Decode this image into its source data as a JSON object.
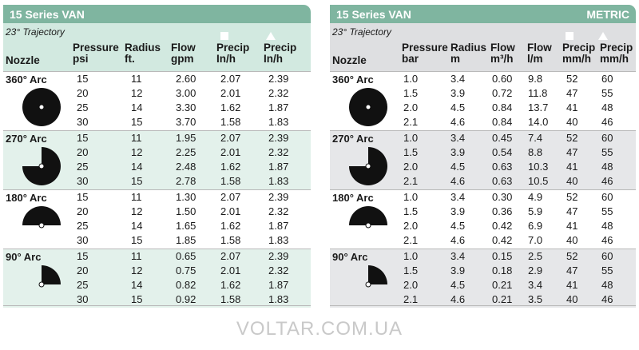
{
  "left": {
    "title": "15 Series VAN",
    "trajectory": "23° Trajectory",
    "headers": {
      "nozzle": "Nozzle",
      "pressure": [
        "Pressure",
        "psi"
      ],
      "radius": [
        "Radius",
        "ft."
      ],
      "flow": [
        "Flow",
        "gpm"
      ],
      "precip_sq": [
        "Precip",
        "In/h"
      ],
      "precip_tri": [
        "Precip",
        "In/h"
      ]
    },
    "groups": [
      {
        "label": "360° Arc",
        "arc": 360,
        "rows": [
          [
            "15",
            "11",
            "2.60",
            "2.07",
            "2.39"
          ],
          [
            "20",
            "12",
            "3.00",
            "2.01",
            "2.32"
          ],
          [
            "25",
            "14",
            "3.30",
            "1.62",
            "1.87"
          ],
          [
            "30",
            "15",
            "3.70",
            "1.58",
            "1.83"
          ]
        ]
      },
      {
        "label": "270° Arc",
        "arc": 270,
        "rows": [
          [
            "15",
            "11",
            "1.95",
            "2.07",
            "2.39"
          ],
          [
            "20",
            "12",
            "2.25",
            "2.01",
            "2.32"
          ],
          [
            "25",
            "14",
            "2.48",
            "1.62",
            "1.87"
          ],
          [
            "30",
            "15",
            "2.78",
            "1.58",
            "1.83"
          ]
        ]
      },
      {
        "label": "180° Arc",
        "arc": 180,
        "rows": [
          [
            "15",
            "11",
            "1.30",
            "2.07",
            "2.39"
          ],
          [
            "20",
            "12",
            "1.50",
            "2.01",
            "2.32"
          ],
          [
            "25",
            "14",
            "1.65",
            "1.62",
            "1.87"
          ],
          [
            "30",
            "15",
            "1.85",
            "1.58",
            "1.83"
          ]
        ]
      },
      {
        "label": "90° Arc",
        "arc": 90,
        "rows": [
          [
            "15",
            "11",
            "0.65",
            "2.07",
            "2.39"
          ],
          [
            "20",
            "12",
            "0.75",
            "2.01",
            "2.32"
          ],
          [
            "25",
            "14",
            "0.82",
            "1.62",
            "1.87"
          ],
          [
            "30",
            "15",
            "0.92",
            "1.58",
            "1.83"
          ]
        ]
      }
    ]
  },
  "right": {
    "title": "15 Series VAN",
    "badge": "METRIC",
    "trajectory": "23° Trajectory",
    "headers": {
      "nozzle": "Nozzle",
      "pressure": [
        "Pressure",
        "bar"
      ],
      "radius": [
        "Radius",
        "m"
      ],
      "flow_m3": [
        "Flow",
        "m³/h"
      ],
      "flow_l": [
        "Flow",
        "l/m"
      ],
      "precip_sq": [
        "Precip",
        "mm/h"
      ],
      "precip_tri": [
        "Precip",
        "mm/h"
      ]
    },
    "groups": [
      {
        "label": "360° Arc",
        "arc": 360,
        "rows": [
          [
            "1.0",
            "3.4",
            "0.60",
            "9.8",
            "52",
            "60"
          ],
          [
            "1.5",
            "3.9",
            "0.72",
            "11.8",
            "47",
            "55"
          ],
          [
            "2.0",
            "4.5",
            "0.84",
            "13.7",
            "41",
            "48"
          ],
          [
            "2.1",
            "4.6",
            "0.84",
            "14.0",
            "40",
            "46"
          ]
        ]
      },
      {
        "label": "270° Arc",
        "arc": 270,
        "rows": [
          [
            "1.0",
            "3.4",
            "0.45",
            "7.4",
            "52",
            "60"
          ],
          [
            "1.5",
            "3.9",
            "0.54",
            "8.8",
            "47",
            "55"
          ],
          [
            "2.0",
            "4.5",
            "0.63",
            "10.3",
            "41",
            "48"
          ],
          [
            "2.1",
            "4.6",
            "0.63",
            "10.5",
            "40",
            "46"
          ]
        ]
      },
      {
        "label": "180° Arc",
        "arc": 180,
        "rows": [
          [
            "1.0",
            "3.4",
            "0.30",
            "4.9",
            "52",
            "60"
          ],
          [
            "1.5",
            "3.9",
            "0.36",
            "5.9",
            "47",
            "55"
          ],
          [
            "2.0",
            "4.5",
            "0.42",
            "6.9",
            "41",
            "48"
          ],
          [
            "2.1",
            "4.6",
            "0.42",
            "7.0",
            "40",
            "46"
          ]
        ]
      },
      {
        "label": "90° Arc",
        "arc": 90,
        "rows": [
          [
            "1.0",
            "3.4",
            "0.15",
            "2.5",
            "52",
            "60"
          ],
          [
            "1.5",
            "3.9",
            "0.18",
            "2.9",
            "47",
            "55"
          ],
          [
            "2.0",
            "4.5",
            "0.21",
            "3.4",
            "41",
            "48"
          ],
          [
            "2.1",
            "4.6",
            "0.21",
            "3.5",
            "40",
            "46"
          ]
        ]
      }
    ]
  },
  "watermark": "VOLTAR.COM.UA",
  "colors": {
    "title_bar": "#7fb5a0",
    "left_header": "#d2e9e0",
    "right_header": "#dedfe1"
  }
}
